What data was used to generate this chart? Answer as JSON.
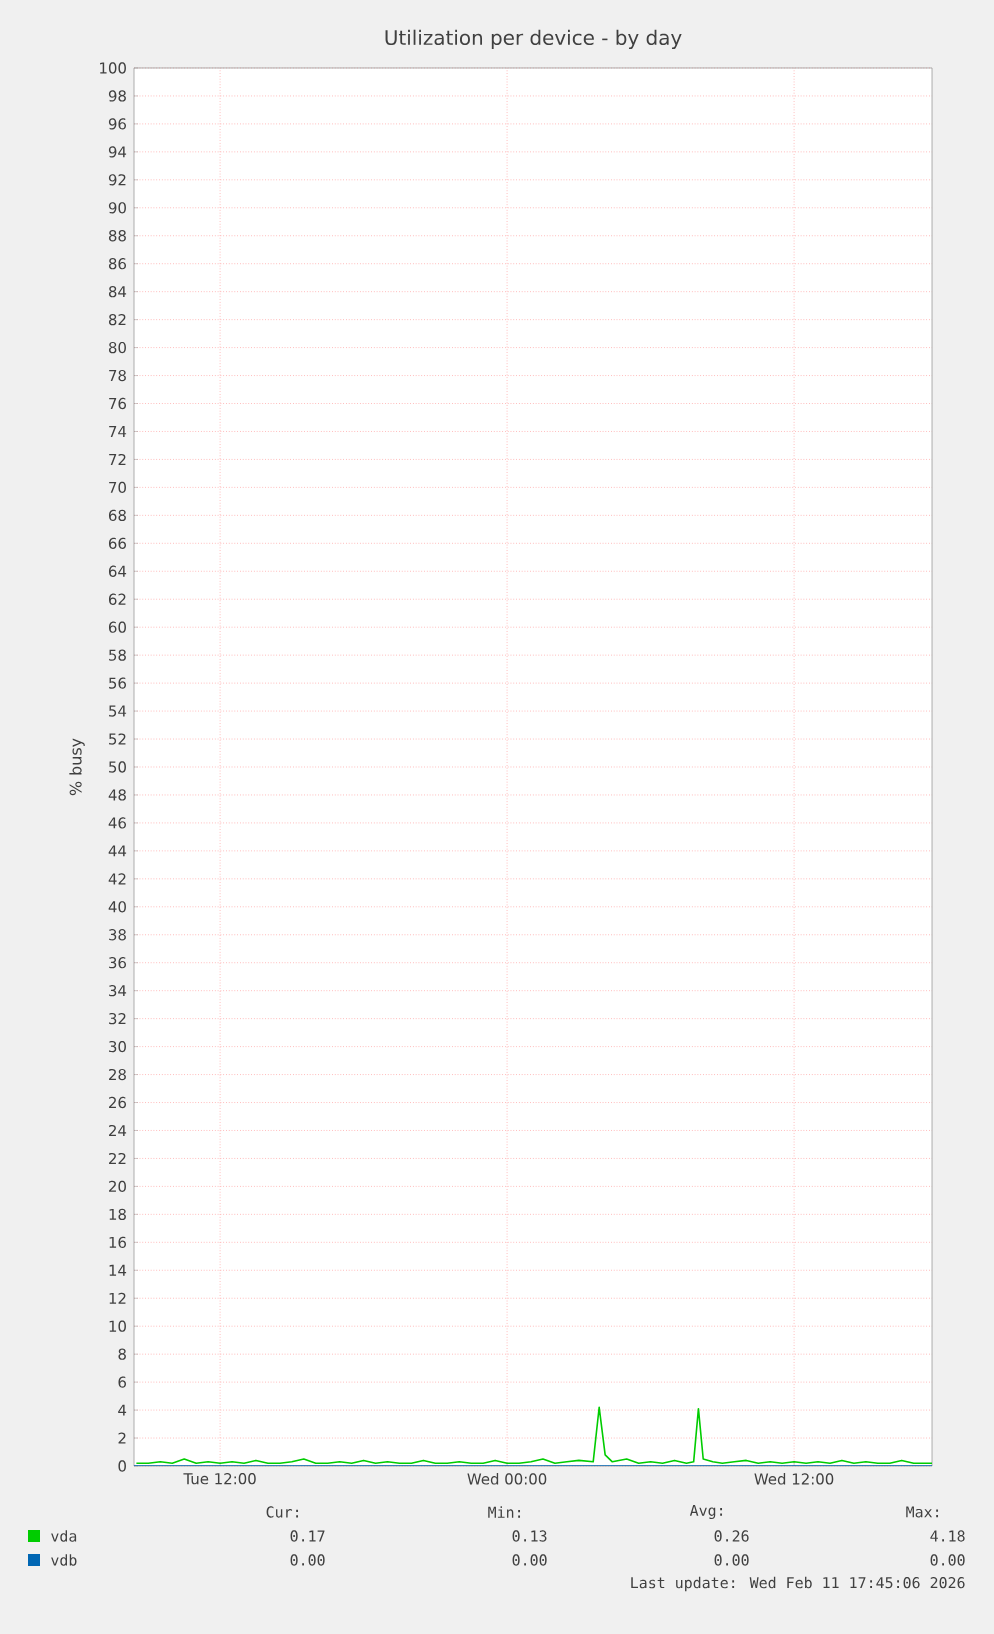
{
  "chart_data": {
    "type": "line",
    "title": "Utilization per device - by day",
    "ylabel": "% busy",
    "xlim": [
      "2026-02-10T08:24",
      "2026-02-11T17:46"
    ],
    "xticks": [
      {
        "value": "2026-02-10T12:00",
        "label": "Tue 12:00"
      },
      {
        "value": "2026-02-11T00:00",
        "label": "Wed 00:00"
      },
      {
        "value": "2026-02-11T12:00",
        "label": "Wed 12:00"
      }
    ],
    "ylim": [
      0,
      100
    ],
    "yticks": [
      0,
      2,
      4,
      6,
      8,
      10,
      12,
      14,
      16,
      18,
      20,
      22,
      24,
      26,
      28,
      30,
      32,
      34,
      36,
      38,
      40,
      42,
      44,
      46,
      48,
      50,
      52,
      54,
      56,
      58,
      60,
      62,
      64,
      66,
      68,
      70,
      72,
      74,
      76,
      78,
      80,
      82,
      84,
      86,
      88,
      90,
      92,
      94,
      96,
      98,
      100
    ],
    "grid": true,
    "legend": "bottom",
    "marker": "none",
    "line_style": "solid",
    "series": [
      {
        "name": "vdb",
        "color": "#0066b3",
        "x": [
          "2026-02-10T08:24",
          "2026-02-11T17:46"
        ],
        "values": [
          0,
          0
        ]
      },
      {
        "name": "vda",
        "color": "#00cc00",
        "x": [
          "2026-02-10T08:30",
          "2026-02-10T09:00",
          "2026-02-10T09:30",
          "2026-02-10T10:00",
          "2026-02-10T10:30",
          "2026-02-10T11:00",
          "2026-02-10T11:30",
          "2026-02-10T12:00",
          "2026-02-10T12:30",
          "2026-02-10T13:00",
          "2026-02-10T13:30",
          "2026-02-10T14:00",
          "2026-02-10T14:30",
          "2026-02-10T15:00",
          "2026-02-10T15:30",
          "2026-02-10T16:00",
          "2026-02-10T16:30",
          "2026-02-10T17:00",
          "2026-02-10T17:30",
          "2026-02-10T18:00",
          "2026-02-10T18:30",
          "2026-02-10T19:00",
          "2026-02-10T19:30",
          "2026-02-10T20:00",
          "2026-02-10T20:30",
          "2026-02-10T21:00",
          "2026-02-10T21:30",
          "2026-02-10T22:00",
          "2026-02-10T22:30",
          "2026-02-10T23:00",
          "2026-02-10T23:30",
          "2026-02-11T00:00",
          "2026-02-11T00:30",
          "2026-02-11T01:00",
          "2026-02-11T01:30",
          "2026-02-11T02:00",
          "2026-02-11T02:30",
          "2026-02-11T03:00",
          "2026-02-11T03:36",
          "2026-02-11T03:51",
          "2026-02-11T04:06",
          "2026-02-11T04:24",
          "2026-02-11T05:00",
          "2026-02-11T05:30",
          "2026-02-11T06:00",
          "2026-02-11T06:30",
          "2026-02-11T07:00",
          "2026-02-11T07:30",
          "2026-02-11T07:48",
          "2026-02-11T08:00",
          "2026-02-11T08:12",
          "2026-02-11T08:36",
          "2026-02-11T09:00",
          "2026-02-11T09:30",
          "2026-02-11T10:00",
          "2026-02-11T10:30",
          "2026-02-11T11:00",
          "2026-02-11T11:30",
          "2026-02-11T12:00",
          "2026-02-11T12:30",
          "2026-02-11T13:00",
          "2026-02-11T13:30",
          "2026-02-11T14:00",
          "2026-02-11T14:30",
          "2026-02-11T15:00",
          "2026-02-11T15:30",
          "2026-02-11T16:00",
          "2026-02-11T16:30",
          "2026-02-11T17:00",
          "2026-02-11T17:30",
          "2026-02-11T17:46"
        ],
        "values": [
          0.2,
          0.2,
          0.3,
          0.2,
          0.5,
          0.2,
          0.3,
          0.2,
          0.3,
          0.2,
          0.4,
          0.2,
          0.2,
          0.3,
          0.5,
          0.2,
          0.2,
          0.3,
          0.2,
          0.4,
          0.2,
          0.3,
          0.2,
          0.2,
          0.4,
          0.2,
          0.2,
          0.3,
          0.2,
          0.2,
          0.4,
          0.2,
          0.2,
          0.3,
          0.5,
          0.2,
          0.3,
          0.4,
          0.3,
          4.2,
          0.8,
          0.3,
          0.5,
          0.2,
          0.3,
          0.2,
          0.4,
          0.2,
          0.3,
          4.1,
          0.5,
          0.3,
          0.2,
          0.3,
          0.4,
          0.2,
          0.3,
          0.2,
          0.3,
          0.2,
          0.3,
          0.2,
          0.4,
          0.2,
          0.3,
          0.2,
          0.2,
          0.4,
          0.2,
          0.2,
          0.2
        ]
      }
    ],
    "annotations": [
      "Cur:",
      "Min:",
      "Avg:",
      "Max:",
      "0.17",
      "0.13",
      "0.26",
      "4.18",
      "0.00",
      "0.00",
      "0.00",
      "0.00",
      "Last update: Wed Feb 11 17:45:06 2026"
    ]
  }
}
